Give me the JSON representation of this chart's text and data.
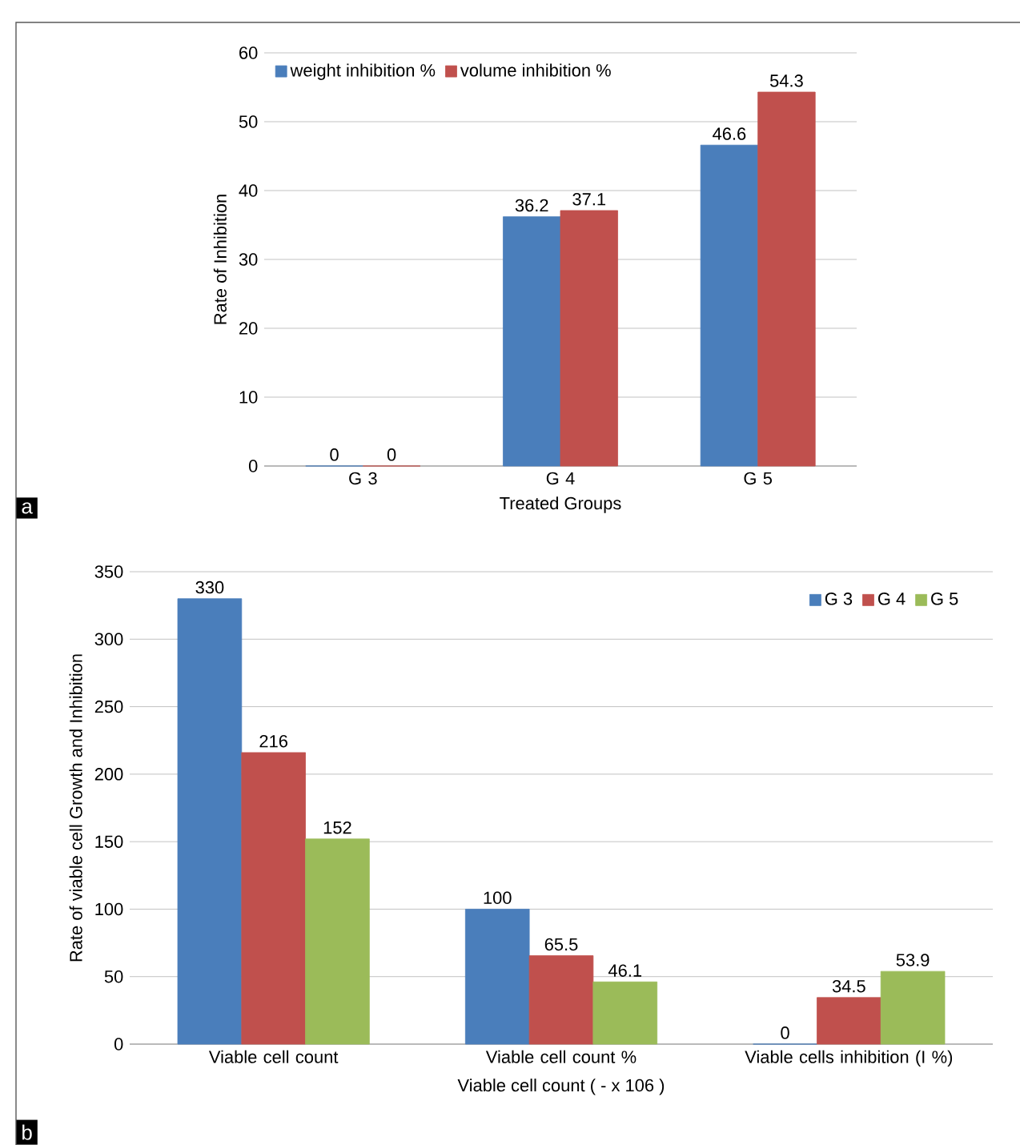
{
  "chart_data": [
    {
      "type": "bar",
      "categories": [
        "G 3",
        "G 4",
        "G 5"
      ],
      "xlabel": "Treated Groups",
      "ylabel": "Rate of Inhibition",
      "ylim": [
        0,
        60
      ],
      "yticks": [
        0,
        10,
        20,
        30,
        40,
        50,
        60
      ],
      "grid": "y",
      "legend": "top left",
      "data_labels": true,
      "annotations": [
        "a"
      ],
      "series": [
        {
          "name": "weight inhibition  %",
          "color": "#4a7ebb",
          "values": [
            0,
            36.2,
            46.6
          ]
        },
        {
          "name": "volume inhibition %",
          "color": "#c0504d",
          "values": [
            0,
            37.1,
            54.3
          ]
        }
      ]
    },
    {
      "type": "bar",
      "categories": [
        "Viable cell count",
        "Viable cell count  %",
        "Viable cells inhibition (I %)"
      ],
      "xlabel": "Viable cell count ( - x 106 )",
      "ylabel": "Rate of viable cell Growth and Inhibition",
      "ylim": [
        0,
        350
      ],
      "yticks": [
        0,
        50,
        100,
        150,
        200,
        250,
        300,
        350
      ],
      "grid": "y",
      "legend": "top right",
      "data_labels": true,
      "annotations": [
        "b"
      ],
      "series": [
        {
          "name": "G 3",
          "color": "#4a7ebb",
          "values": [
            330,
            100,
            0
          ]
        },
        {
          "name": "G 4",
          "color": "#c0504d",
          "values": [
            216,
            65.5,
            34.5
          ]
        },
        {
          "name": "G 5",
          "color": "#9bbb59",
          "values": [
            152,
            46.1,
            53.9
          ]
        }
      ]
    }
  ]
}
